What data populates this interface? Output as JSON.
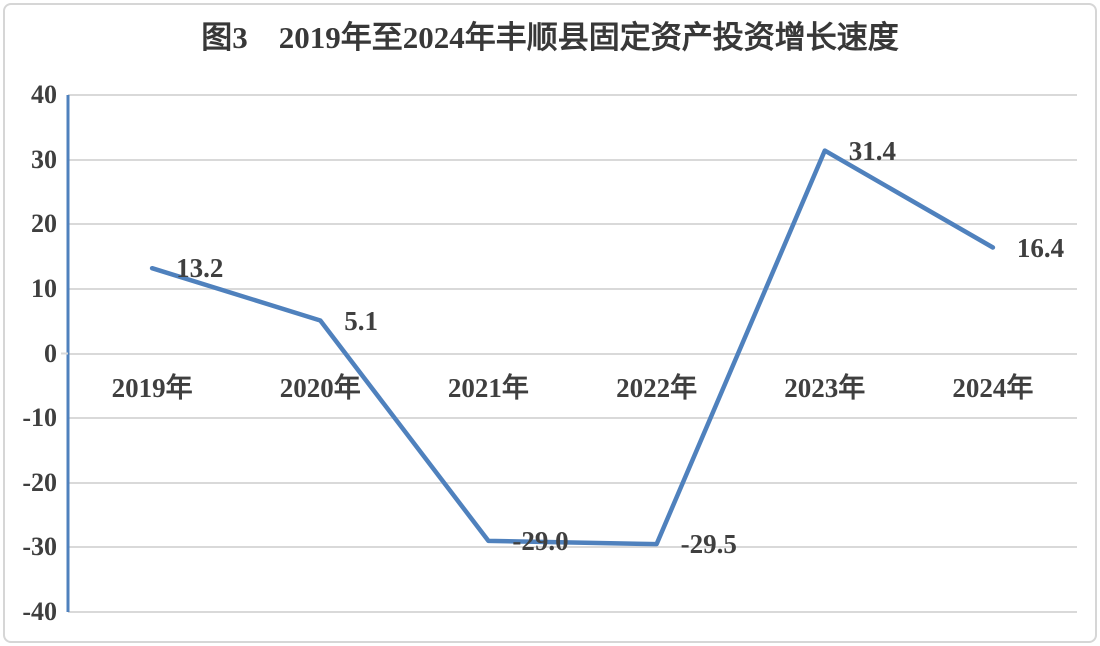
{
  "page": {
    "background": "#ffffff",
    "border_color": "#d6d6d6"
  },
  "chart_data": {
    "type": "line",
    "title": "图3　2019年至2024年丰顺县固定资产投资增长速度",
    "categories": [
      "2019年",
      "2020年",
      "2021年",
      "2022年",
      "2023年",
      "2024年"
    ],
    "values": [
      13.2,
      5.1,
      -29.0,
      -29.5,
      31.4,
      16.4
    ],
    "labels": [
      "13.2",
      "5.1",
      "-29.0",
      "-29.5",
      "31.4",
      "16.4"
    ],
    "yticks": [
      "40",
      "30",
      "20",
      "10",
      "0",
      "-10",
      "-20",
      "-30",
      "-40"
    ],
    "ylim": [
      -40,
      40
    ],
    "xlabel": "",
    "ylabel": "",
    "grid": true,
    "legend": "none",
    "line_color": "#4f81bd",
    "grid_color": "#d9d9d9",
    "text_color": "#3f3f3f",
    "title_color": "#383838"
  }
}
